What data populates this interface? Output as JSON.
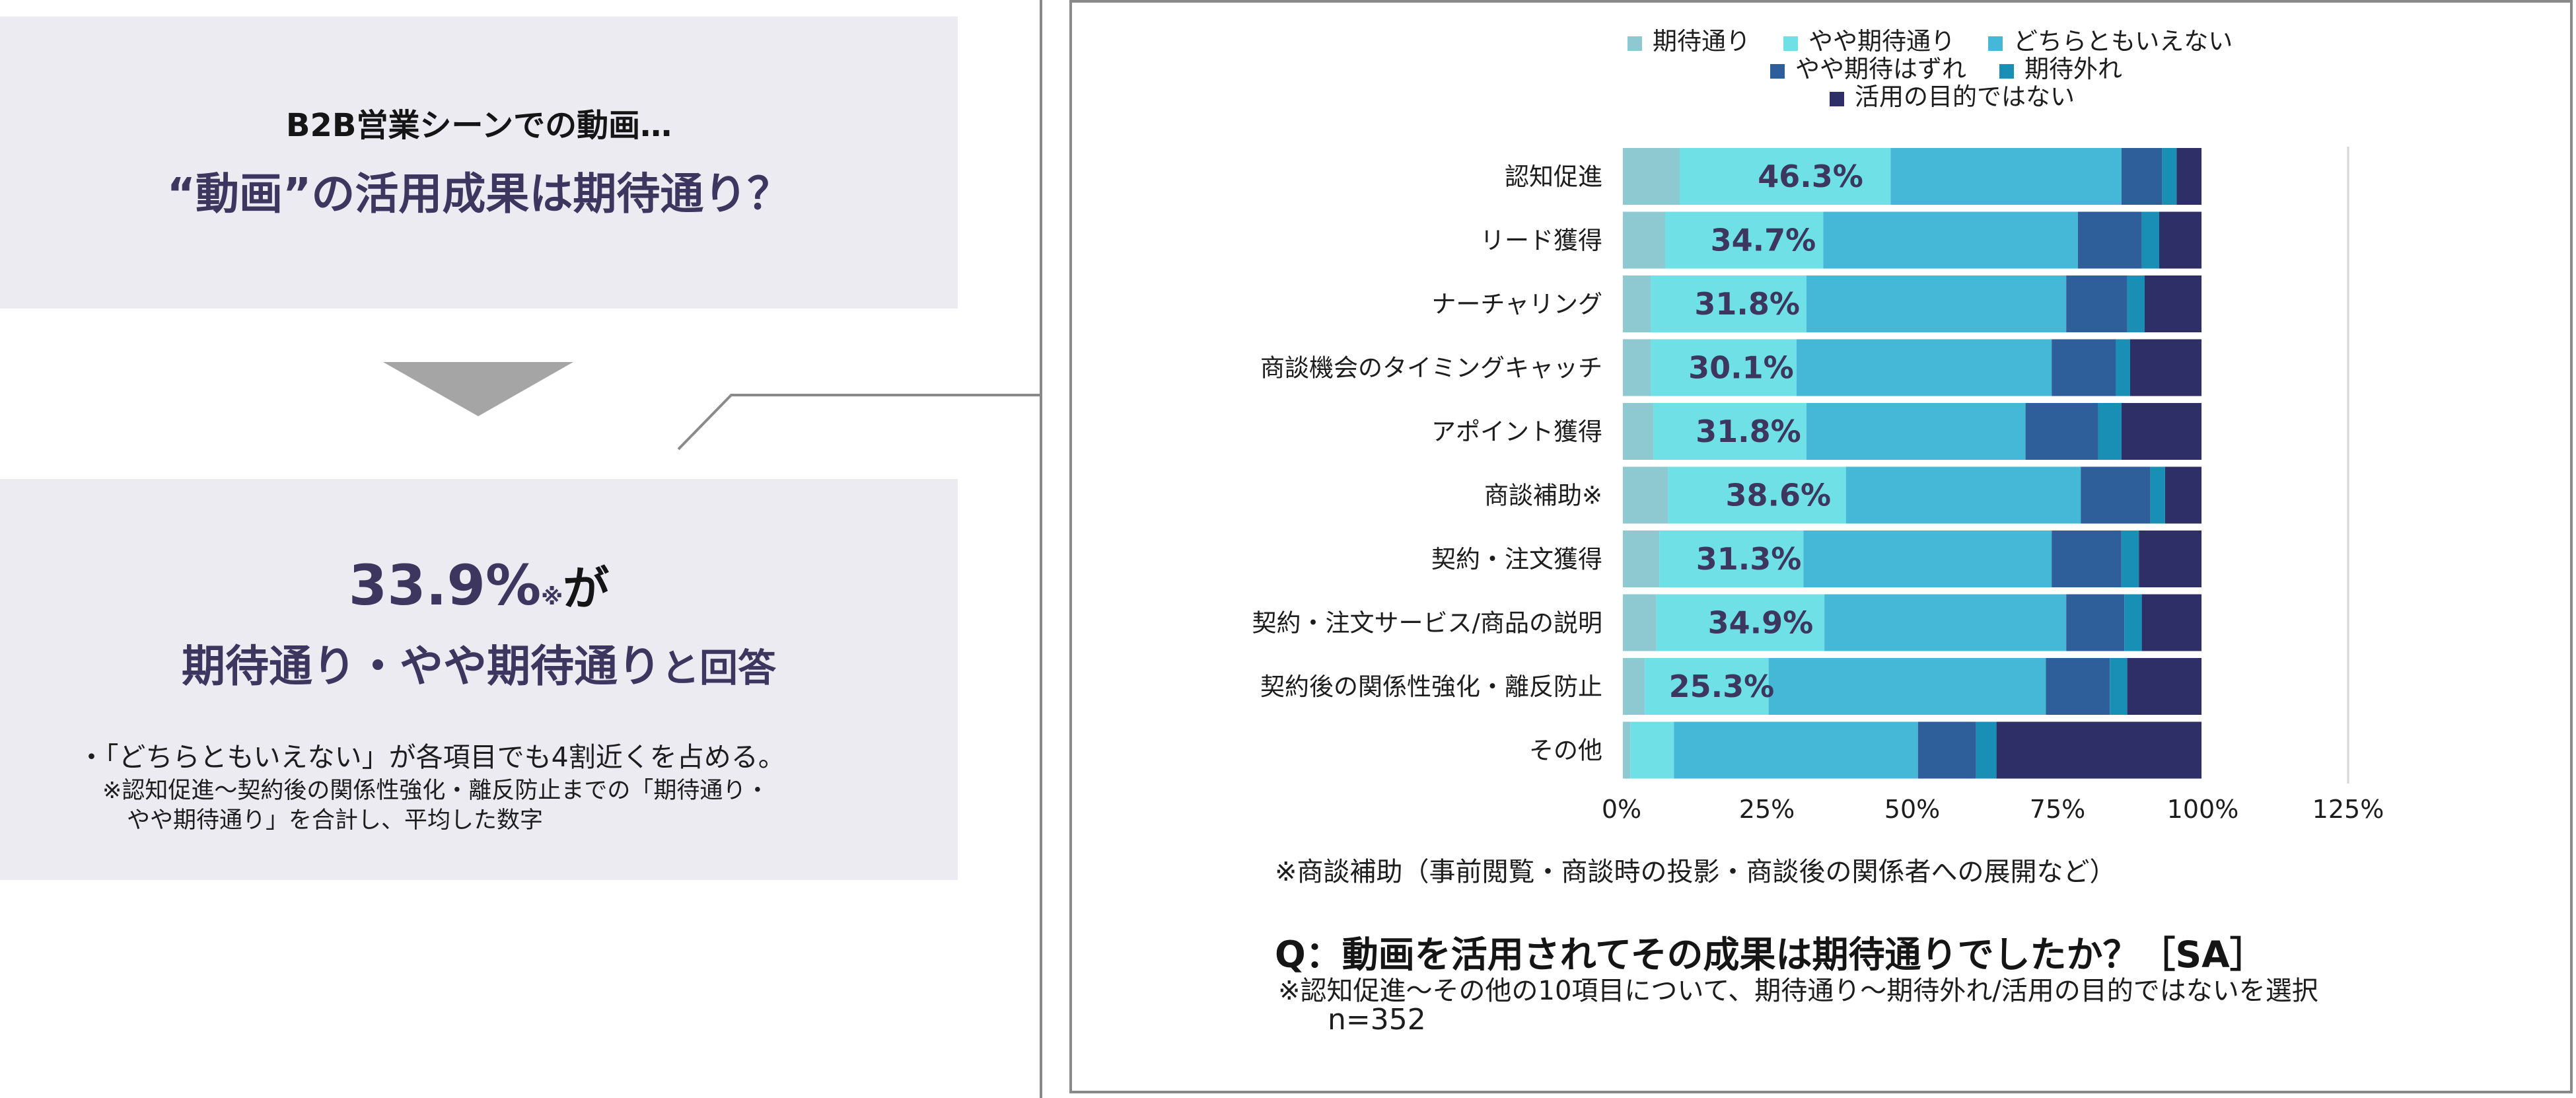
{
  "left_panel": {
    "heading_small": "B2B営業シーンでの動画…",
    "heading_main": "“動画”の活用成果は期待通り？",
    "highlight_number": "33.9%",
    "highlight_note_mark": "※",
    "highlight_suffix": "が",
    "highlight_line2_main": "期待通り・やや期待通り",
    "highlight_line2_small": "と回答",
    "bullet": "・「どちらともいえない」が各項目でも4割近くを占める。",
    "note_line1": "※認知促進～契約後の関係性強化・離反防止までの「期待通り・",
    "note_line2": "やや期待通り」を合計し、平均した数字"
  },
  "right_panel": {
    "footnote": "※商談補助（事前閲覧・商談時の投影・商談後の関係者への展開など）",
    "question": "Q：動画を活用されてその成果は期待通りでしたか？［SA］",
    "subnote": "※認知促進～その他の10項目について、期待通り～期待外れ/活用の目的ではないを選択",
    "sample": "n=352"
  },
  "chart_data": {
    "type": "bar",
    "orientation": "horizontal",
    "stacked": true,
    "categories": [
      "認知促進",
      "リード獲得",
      "ナーチャリング",
      "商談機会のタイミングキャッチ",
      "アポイント獲得",
      "商談補助※",
      "契約・注文獲得",
      "契約・注文サービス/商品の説明",
      "契約後の関係性強化・離反防止",
      "その他"
    ],
    "series": [
      {
        "name": "期待通り",
        "color": "#8ec8d0",
        "values": [
          10,
          7.5,
          5,
          5,
          5.5,
          8,
          6.5,
          6,
          4,
          1.5
        ]
      },
      {
        "name": "やや期待通り",
        "color": "#6ee0e6",
        "values": [
          36.3,
          27.2,
          26.8,
          25.1,
          26.3,
          30.6,
          24.8,
          28.9,
          21.3,
          7.5
        ]
      },
      {
        "name": "どちらともいえない",
        "color": "#44b8d6",
        "values": [
          39.7,
          43.8,
          44.7,
          43.9,
          37.7,
          40.4,
          42.7,
          41.6,
          47.7,
          42
        ]
      },
      {
        "name": "やや期待はずれ",
        "color": "#2f5f9a",
        "values": [
          7,
          11,
          10.5,
          11,
          12.5,
          12,
          12,
          10,
          11,
          10
        ]
      },
      {
        "name": "期待外れ",
        "color": "#1a8fb5",
        "values": [
          2.5,
          3,
          3,
          2.5,
          4,
          2.5,
          3,
          3,
          3,
          3.5
        ]
      },
      {
        "name": "活用の目的ではない",
        "color": "#2f2f67",
        "values": [
          4.5,
          7.5,
          10,
          12.5,
          14,
          6.5,
          11,
          10.5,
          13,
          35.5
        ]
      }
    ],
    "data_labels": [
      "46.3%",
      "34.7%",
      "31.8%",
      "30.1%",
      "31.8%",
      "38.6%",
      "31.3%",
      "34.9%",
      "25.3%",
      ""
    ],
    "x_ticks": [
      "0%",
      "25%",
      "50%",
      "75%",
      "100%",
      "125%"
    ],
    "xlim": [
      0,
      125
    ],
    "grid": "vertical at 125% only",
    "legend_placement": "top"
  }
}
